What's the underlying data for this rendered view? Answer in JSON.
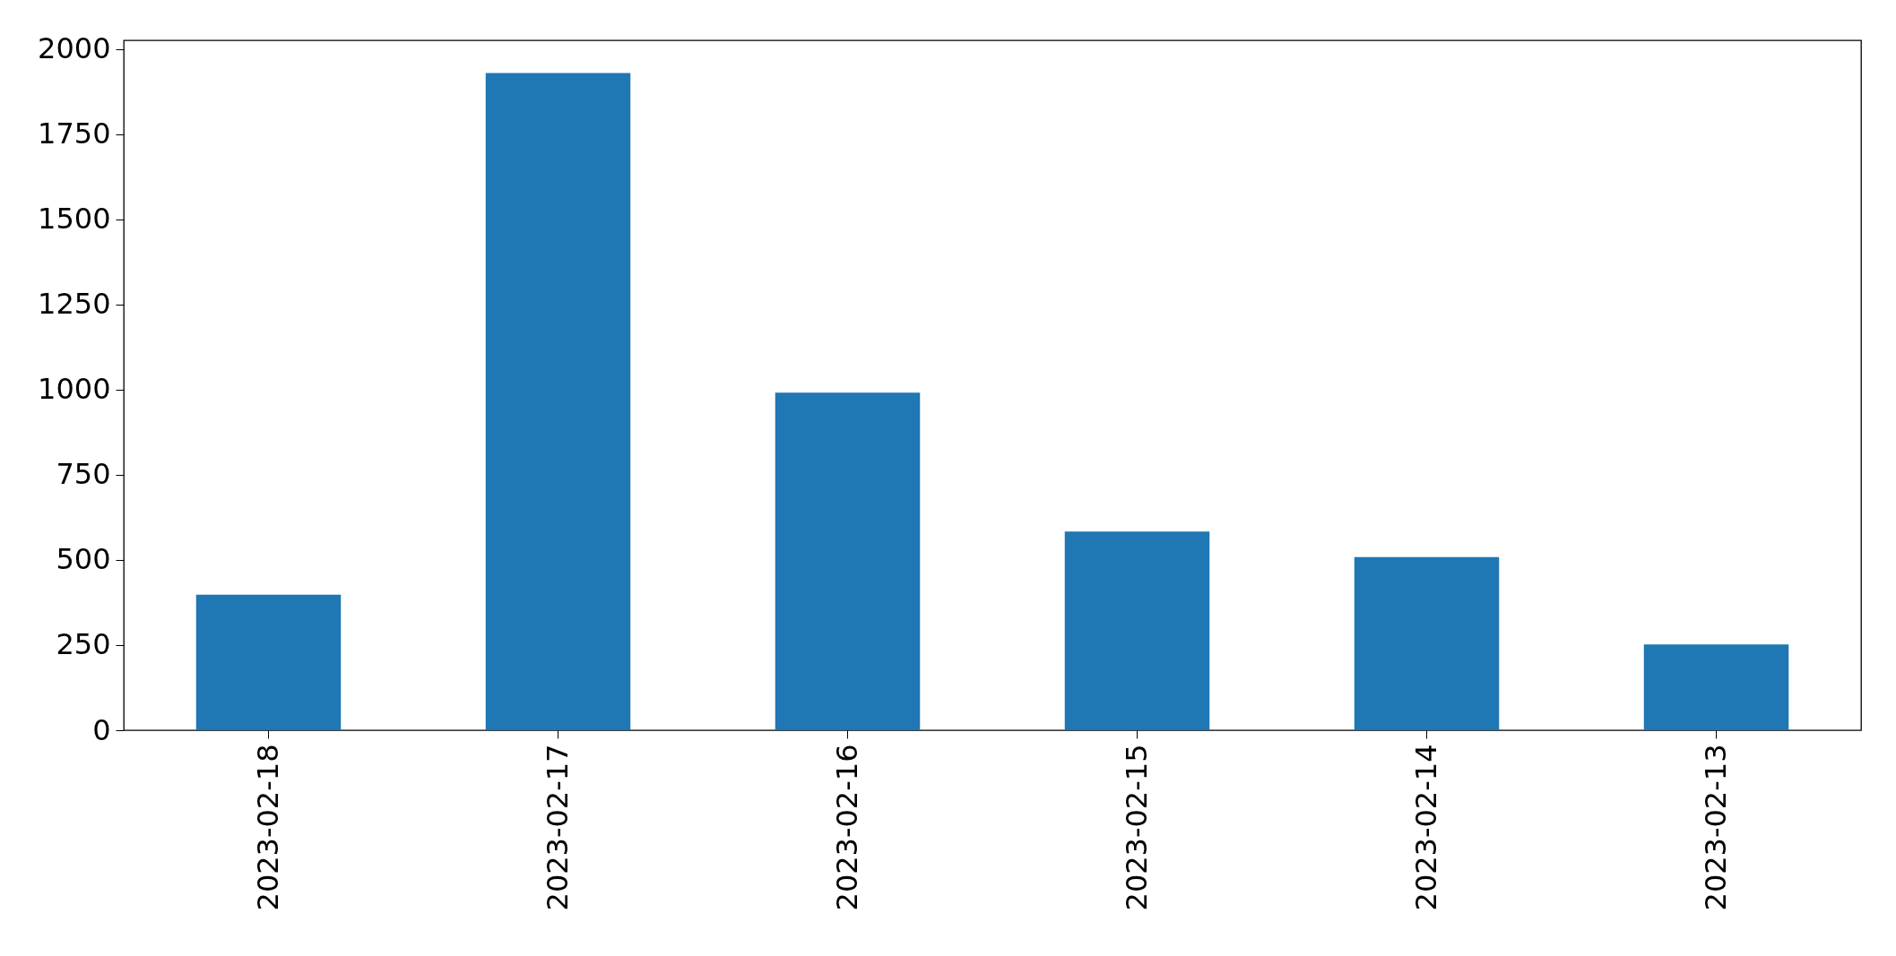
{
  "chart_data": {
    "type": "bar",
    "categories": [
      "2023-02-18",
      "2023-02-17",
      "2023-02-16",
      "2023-02-15",
      "2023-02-14",
      "2023-02-13"
    ],
    "values": [
      398,
      1929,
      991,
      583,
      508,
      252
    ],
    "color": "#1f77b4",
    "ylim": [
      0,
      2025
    ],
    "yticks": [
      0,
      250,
      500,
      750,
      1000,
      1250,
      1500,
      1750,
      2000
    ],
    "grid": false
  }
}
